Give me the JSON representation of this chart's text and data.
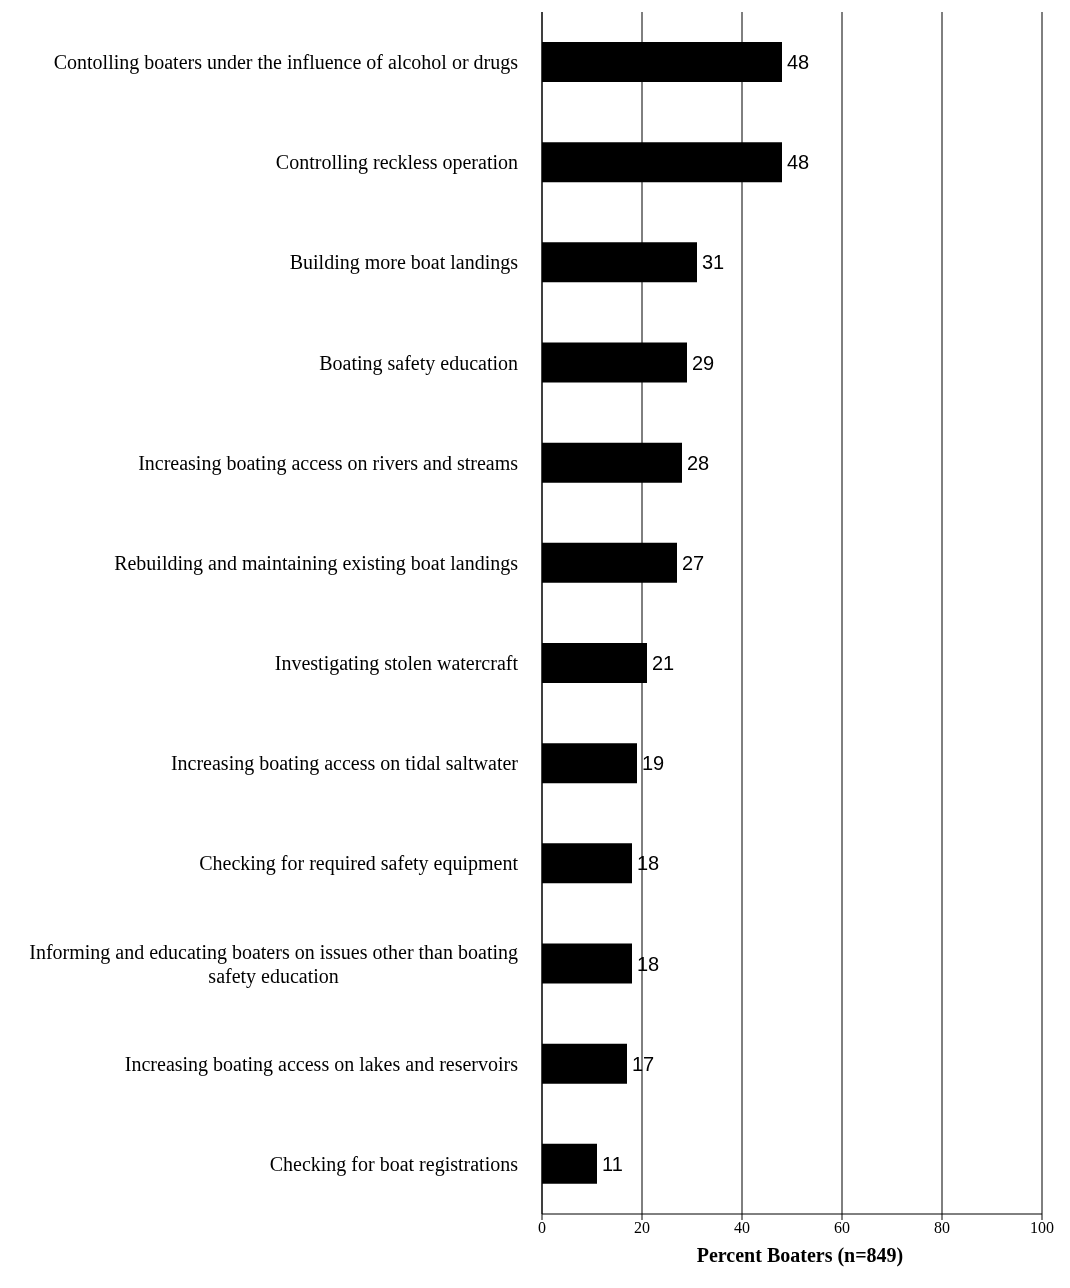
{
  "chart_data": {
    "type": "bar",
    "orientation": "horizontal",
    "xlabel": "Percent Boaters (n=849)",
    "categories": [
      "Contolling boaters under the influence of alcohol or drugs",
      "Controlling reckless operation",
      "Building more boat landings",
      "Boating safety education",
      "Increasing boating access on rivers and streams",
      "Rebuilding and maintaining existing boat landings",
      "Investigating stolen watercraft",
      "Increasing boating access on tidal saltwater",
      "Checking for required safety equipment",
      "Informing and educating boaters on issues other than boating safety education",
      "Increasing boating access on lakes and reservoirs",
      "Checking for boat registrations"
    ],
    "values": [
      48,
      48,
      31,
      29,
      28,
      27,
      21,
      19,
      18,
      18,
      17,
      11
    ],
    "color": "#000000",
    "xlim": [
      0,
      100
    ],
    "xticks": [
      0,
      20,
      40,
      60,
      80,
      100
    ],
    "grid": "x",
    "data_labels": true
  }
}
